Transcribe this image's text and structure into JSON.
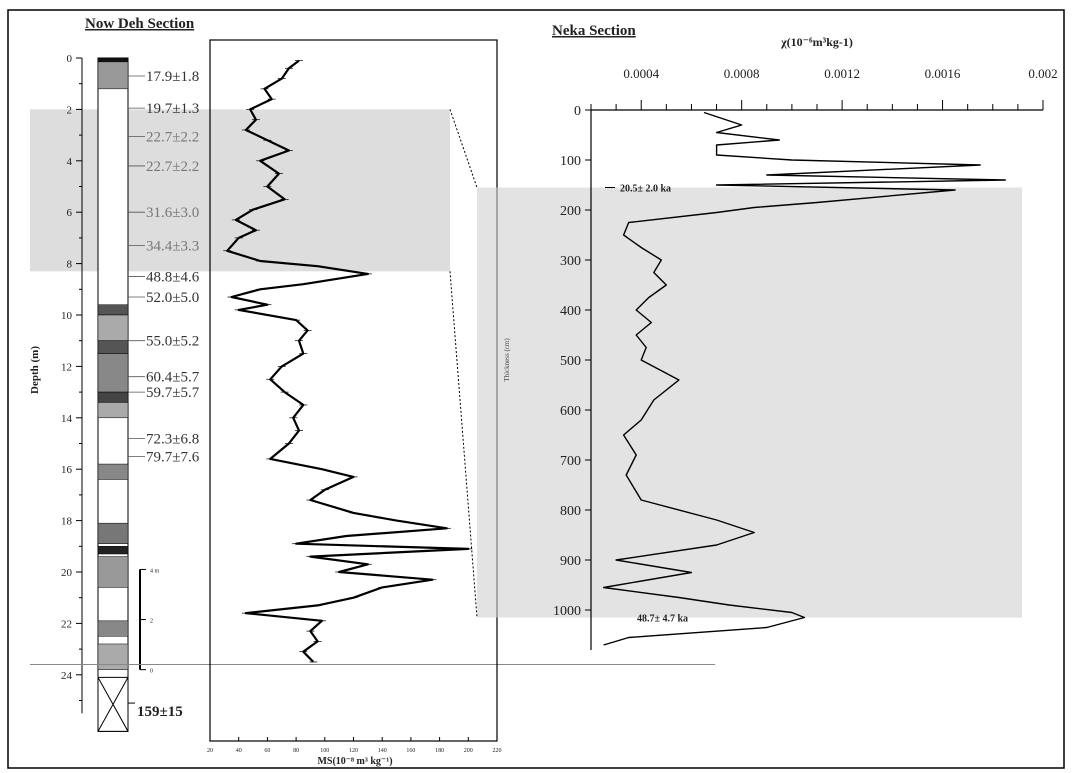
{
  "titles": {
    "left": "Now Deh Section",
    "right": "Neka Section"
  },
  "column": {
    "ylabel": "Depth (m)",
    "depth_ticks": [
      "0",
      "2",
      "4",
      "6",
      "8",
      "10",
      "12",
      "14",
      "16",
      "18",
      "20",
      "22",
      "24"
    ],
    "bottom_age": "159±15",
    "scale_labels": [
      "4 m",
      "2",
      "0"
    ],
    "ages": [
      {
        "depth": 0.7,
        "label": "17.9±1.8",
        "gray": false
      },
      {
        "depth": 1.95,
        "label": "19.7±1.3",
        "gray": false
      },
      {
        "depth": 3.05,
        "label": "22.7±2.2",
        "gray": true
      },
      {
        "depth": 4.2,
        "label": "22.7±2.2",
        "gray": true
      },
      {
        "depth": 6.0,
        "label": "31.6±3.0",
        "gray": true
      },
      {
        "depth": 7.3,
        "label": "34.4±3.3",
        "gray": true
      },
      {
        "depth": 8.5,
        "label": "48.8±4.6",
        "gray": false
      },
      {
        "depth": 9.3,
        "label": "52.0±5.0",
        "gray": false
      },
      {
        "depth": 11.0,
        "label": "55.0±5.2",
        "gray": false
      },
      {
        "depth": 12.4,
        "label": "60.4±5.7",
        "gray": false
      },
      {
        "depth": 13.0,
        "label": "59.7±5.7",
        "gray": false
      },
      {
        "depth": 14.8,
        "label": "72.3±6.8",
        "gray": false
      },
      {
        "depth": 15.5,
        "label": "79.7±7.6",
        "gray": false
      }
    ]
  },
  "chart_data": [
    {
      "type": "line",
      "xlabel": "MS(10⁻⁸ m³ kg⁻¹)",
      "ylabel": "Depth (m)",
      "xlim": [
        20,
        220
      ],
      "ylim": [
        0,
        26
      ],
      "x_ticks": [
        "20",
        "40",
        "60",
        "80",
        "100",
        "120",
        "140",
        "160",
        "180",
        "200",
        "220"
      ],
      "shaded_interval": [
        2.0,
        8.3
      ],
      "series": [
        {
          "color": "#000000",
          "points": [
            [
              82,
              0.1
            ],
            [
              75,
              0.4
            ],
            [
              70,
              0.8
            ],
            [
              58,
              1.2
            ],
            [
              63,
              1.6
            ],
            [
              48,
              2.0
            ],
            [
              52,
              2.4
            ],
            [
              45,
              2.8
            ],
            [
              60,
              3.2
            ],
            [
              75,
              3.6
            ],
            [
              55,
              4.0
            ],
            [
              68,
              4.5
            ],
            [
              60,
              5.0
            ],
            [
              72,
              5.5
            ],
            [
              50,
              5.9
            ],
            [
              38,
              6.3
            ],
            [
              52,
              6.7
            ],
            [
              40,
              7.0
            ],
            [
              32,
              7.5
            ],
            [
              55,
              7.9
            ],
            [
              95,
              8.1
            ],
            [
              130,
              8.4
            ],
            [
              85,
              8.8
            ],
            [
              55,
              9.0
            ],
            [
              35,
              9.3
            ],
            [
              60,
              9.6
            ],
            [
              40,
              9.8
            ],
            [
              80,
              10.2
            ],
            [
              88,
              10.6
            ],
            [
              82,
              11.0
            ],
            [
              85,
              11.5
            ],
            [
              70,
              12.0
            ],
            [
              62,
              12.5
            ],
            [
              72,
              13.0
            ],
            [
              85,
              13.5
            ],
            [
              78,
              14.0
            ],
            [
              82,
              14.5
            ],
            [
              75,
              15.0
            ],
            [
              62,
              15.6
            ],
            [
              98,
              16.0
            ],
            [
              120,
              16.3
            ],
            [
              100,
              16.8
            ],
            [
              90,
              17.2
            ],
            [
              120,
              17.7
            ],
            [
              150,
              18.0
            ],
            [
              185,
              18.3
            ],
            [
              115,
              18.6
            ],
            [
              80,
              18.9
            ],
            [
              200,
              19.1
            ],
            [
              90,
              19.4
            ],
            [
              130,
              19.7
            ],
            [
              110,
              20.0
            ],
            [
              175,
              20.3
            ],
            [
              140,
              20.6
            ],
            [
              120,
              21.0
            ],
            [
              95,
              21.3
            ],
            [
              45,
              21.6
            ],
            [
              98,
              21.9
            ],
            [
              90,
              22.3
            ],
            [
              95,
              22.7
            ],
            [
              85,
              23.1
            ],
            [
              92,
              23.5
            ]
          ]
        }
      ]
    },
    {
      "type": "line",
      "xlabel": "χ(10⁻⁶m³kg-1)",
      "ylabel": "Thickness (cm)",
      "xlim": [
        0.0002,
        0.002
      ],
      "ylim": [
        0,
        1080
      ],
      "x_ticks": [
        "0.0004",
        "0.0008",
        "0.0012",
        "0.0016",
        "0.002"
      ],
      "y_ticks": [
        "0",
        "100",
        "200",
        "300",
        "400",
        "500",
        "600",
        "700",
        "800",
        "900",
        "1000"
      ],
      "shaded_interval": [
        155,
        1015
      ],
      "annotations": [
        {
          "y": 155,
          "text": "20.5± 2.0 ka"
        },
        {
          "y": 1015,
          "text": "48.7± 4.7 ka"
        }
      ],
      "series": [
        {
          "color": "#000000",
          "points": [
            [
              0.00065,
              5
            ],
            [
              0.0008,
              30
            ],
            [
              0.0007,
              45
            ],
            [
              0.00095,
              60
            ],
            [
              0.0007,
              70
            ],
            [
              0.0007,
              90
            ],
            [
              0.001,
              100
            ],
            [
              0.00175,
              110
            ],
            [
              0.0009,
              130
            ],
            [
              0.00185,
              140
            ],
            [
              0.0007,
              150
            ],
            [
              0.00165,
              160
            ],
            [
              0.0011,
              185
            ],
            [
              0.00085,
              195
            ],
            [
              0.0007,
              205
            ],
            [
              0.00035,
              225
            ],
            [
              0.00033,
              250
            ],
            [
              0.0004,
              275
            ],
            [
              0.00048,
              300
            ],
            [
              0.00045,
              325
            ],
            [
              0.0005,
              350
            ],
            [
              0.00043,
              375
            ],
            [
              0.00038,
              400
            ],
            [
              0.00044,
              425
            ],
            [
              0.00038,
              450
            ],
            [
              0.00042,
              475
            ],
            [
              0.0004,
              500
            ],
            [
              0.00055,
              540
            ],
            [
              0.00045,
              580
            ],
            [
              0.0004,
              620
            ],
            [
              0.00033,
              650
            ],
            [
              0.00038,
              690
            ],
            [
              0.00034,
              730
            ],
            [
              0.0004,
              780
            ],
            [
              0.0007,
              820
            ],
            [
              0.00085,
              845
            ],
            [
              0.0007,
              870
            ],
            [
              0.0003,
              900
            ],
            [
              0.0006,
              925
            ],
            [
              0.00025,
              955
            ],
            [
              0.00055,
              975
            ],
            [
              0.00075,
              990
            ],
            [
              0.001,
              1005
            ],
            [
              0.00105,
              1015
            ],
            [
              0.0009,
              1035
            ],
            [
              0.00035,
              1055
            ],
            [
              0.00025,
              1070
            ]
          ]
        }
      ]
    }
  ]
}
